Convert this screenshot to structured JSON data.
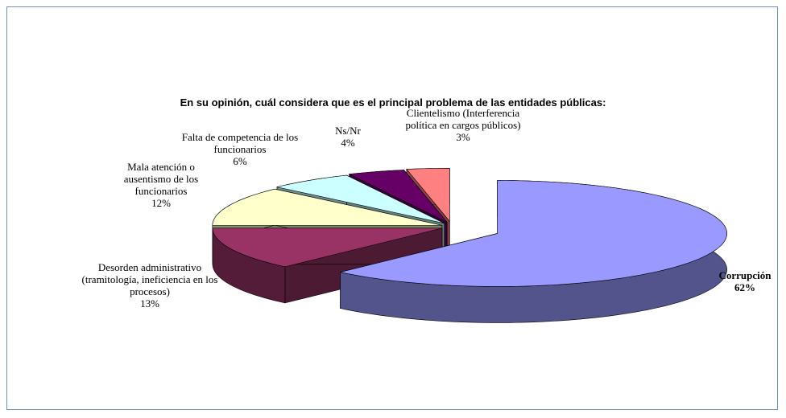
{
  "chart_data": {
    "type": "pie3d",
    "title": "En su opinión, cuál considera que es el principal problema de las entidades públicas:",
    "categories": [
      "Corrupción",
      "Desorden administrativo (tramitología, ineficiencia en los procesos)",
      "Mala atención o ausentismo de los funcionarios",
      "Falta de competencia de los funcionarios",
      "Ns/Nr",
      "Clientelismo (Interferencia política en cargos públicos)"
    ],
    "values": [
      62,
      13,
      12,
      6,
      4,
      3
    ],
    "value_labels": [
      "62%",
      "13%",
      "12%",
      "6%",
      "4%",
      "3%"
    ],
    "colors": [
      "#9999ff",
      "#993366",
      "#ffffcc",
      "#ccffff",
      "#660066",
      "#ff8080"
    ]
  }
}
